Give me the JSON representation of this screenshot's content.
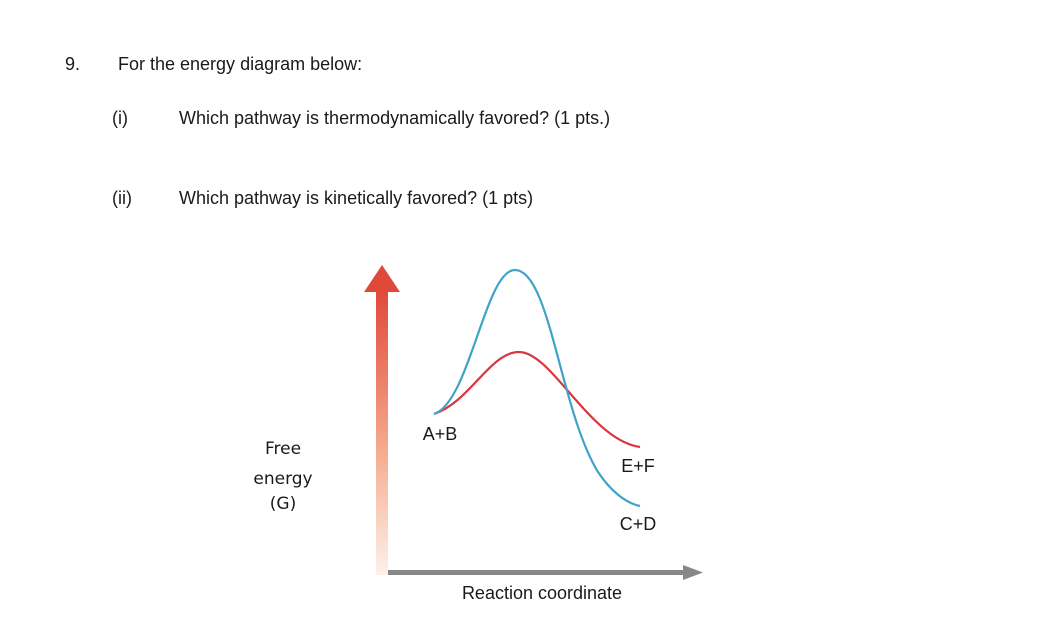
{
  "question": {
    "number": "9.",
    "prompt": "For the energy diagram below:",
    "parts": [
      {
        "label": "(i)",
        "text": "Which pathway is thermodynamically favored? (1 pts.)"
      },
      {
        "label": "(ii)",
        "text": "Which pathway is kinetically favored? (1 pts)"
      }
    ]
  },
  "diagram": {
    "y_axis_label": [
      "Free",
      "energy",
      "(G)"
    ],
    "x_axis_label": "Reaction coordinate",
    "reactant_label": "A+B",
    "products": [
      {
        "label": "E+F",
        "pathway": "red",
        "color": "#d9363e"
      },
      {
        "label": "C+D",
        "pathway": "blue",
        "color": "#3fa3c9"
      }
    ],
    "colors": {
      "y_axis_arrow": "#e0483a",
      "x_axis_arrow": "#888888"
    }
  }
}
